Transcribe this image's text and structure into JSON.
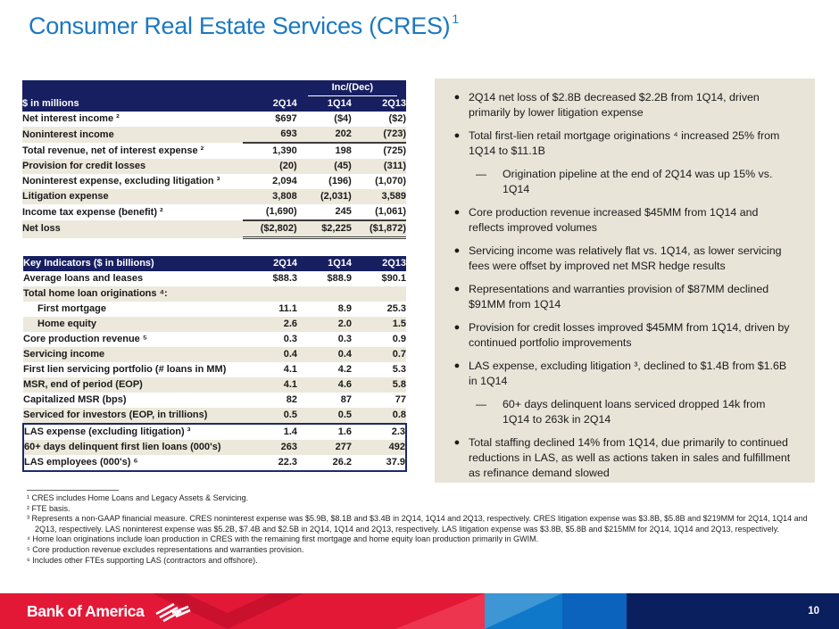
{
  "slide": {
    "title": "Consumer Real Estate Services (CRES)",
    "title_sup": "1",
    "page_number": "10",
    "brand": "Bank of America"
  },
  "colors": {
    "title_blue": "#1b78c2",
    "header_navy": "#171f60",
    "row_beige": "#ece8db",
    "panel_beige": "#e8e4d8",
    "footer_red": "#e31837",
    "footer_blue": "#0f78c8",
    "footer_navy": "#0a1f5e"
  },
  "income_table": {
    "inc_dec_label": "Inc/(Dec)",
    "col_header_label": "$ in millions",
    "columns": [
      "2Q14",
      "1Q14",
      "2Q13"
    ],
    "rows": [
      {
        "label": "Net interest income ²",
        "values": [
          "$697",
          "($4)",
          "($2)"
        ]
      },
      {
        "label": "Noninterest income",
        "values": [
          "693",
          "202",
          "(723)"
        ],
        "underline": true
      },
      {
        "label": "Total revenue, net of interest expense ²",
        "values": [
          "1,390",
          "198",
          "(725)"
        ]
      },
      {
        "label": "Provision for credit losses",
        "values": [
          "(20)",
          "(45)",
          "(311)"
        ]
      },
      {
        "label": "Noninterest expense, excluding litigation ³",
        "values": [
          "2,094",
          "(196)",
          "(1,070)"
        ]
      },
      {
        "label": "Litigation expense",
        "values": [
          "3,808",
          "(2,031)",
          "3,589"
        ]
      },
      {
        "label": "Income tax expense (benefit) ²",
        "values": [
          "(1,690)",
          "245",
          "(1,061)"
        ],
        "underline": true
      },
      {
        "label": "Net loss",
        "values": [
          "($2,802)",
          "$2,225",
          "($1,872)"
        ],
        "double_underline": true
      }
    ]
  },
  "key_indicators_table": {
    "header_label": "Key Indicators ($ in billions)",
    "columns": [
      "2Q14",
      "1Q14",
      "2Q13"
    ],
    "rows": [
      {
        "label": "Average loans and leases",
        "values": [
          "$88.3",
          "$88.9",
          "$90.1"
        ]
      },
      {
        "label": "Total home loan originations ⁴:",
        "values": [
          "",
          "",
          ""
        ]
      },
      {
        "label": "First mortgage",
        "values": [
          "11.1",
          "8.9",
          "25.3"
        ],
        "indent": true
      },
      {
        "label": "Home equity",
        "values": [
          "2.6",
          "2.0",
          "1.5"
        ],
        "indent": true
      },
      {
        "label": "Core production revenue ⁵",
        "values": [
          "0.3",
          "0.3",
          "0.9"
        ]
      },
      {
        "label": "Servicing income",
        "values": [
          "0.4",
          "0.4",
          "0.7"
        ]
      },
      {
        "label": "First lien servicing portfolio (# loans in MM)",
        "values": [
          "4.1",
          "4.2",
          "5.3"
        ]
      },
      {
        "label": "MSR, end of period (EOP)",
        "values": [
          "4.1",
          "4.6",
          "5.8"
        ]
      },
      {
        "label": "Capitalized MSR (bps)",
        "values": [
          "82",
          "87",
          "77"
        ]
      },
      {
        "label": "Serviced for investors (EOP, in trillions)",
        "values": [
          "0.5",
          "0.5",
          "0.8"
        ]
      },
      {
        "label": "LAS expense (excluding litigation) ³",
        "values": [
          "1.4",
          "1.6",
          "2.3"
        ],
        "boxed": true
      },
      {
        "label": "60+ days delinquent first lien loans (000's)",
        "values": [
          "263",
          "277",
          "492"
        ],
        "boxed": true
      },
      {
        "label": "LAS employees (000's) ⁶",
        "values": [
          "22.3",
          "26.2",
          "37.9"
        ],
        "boxed": true
      }
    ]
  },
  "highlights": {
    "bullet_char": "●",
    "sub_bullet_char": "—",
    "bullets": [
      {
        "text": "2Q14 net loss of $2.8B decreased $2.2B from 1Q14, driven primarily by lower litigation expense"
      },
      {
        "text": "Total first-lien retail mortgage originations ⁴ increased 25% from 1Q14 to $11.1B",
        "sub": [
          "Origination pipeline at the end of 2Q14 was up 15% vs. 1Q14"
        ]
      },
      {
        "text": "Core production revenue increased $45MM from 1Q14 and reflects improved volumes"
      },
      {
        "text": "Servicing income was relatively flat vs. 1Q14, as lower servicing fees were offset by improved net MSR hedge results"
      },
      {
        "text": "Representations and warranties provision of $87MM declined $91MM from 1Q14"
      },
      {
        "text": "Provision for credit losses improved $45MM from 1Q14, driven by continued portfolio improvements"
      },
      {
        "text": "LAS expense, excluding litigation ³, declined to $1.4B from $1.6B in 1Q14",
        "sub": [
          "60+ days delinquent loans serviced dropped 14k from 1Q14 to 263k in 2Q14"
        ]
      },
      {
        "text": "Total staffing declined 14% from 1Q14, due primarily to continued reductions in LAS, as well as actions taken in sales and fulfillment as refinance demand slowed"
      }
    ]
  },
  "footnotes": [
    "¹ CRES includes Home Loans and Legacy Assets & Servicing.",
    "² FTE basis.",
    "³ Represents a non-GAAP financial measure. CRES noninterest expense was $5.9B, $8.1B and $3.4B in 2Q14, 1Q14 and 2Q13, respectively. CRES litigation expense was $3.8B, $5.8B and $219MM for 2Q14, 1Q14 and 2Q13, respectively. LAS noninterest expense was $5.2B, $7.4B and $2.5B in 2Q14, 1Q14 and 2Q13, respectively. LAS litigation expense was $3.8B, $5.8B and $215MM for 2Q14, 1Q14 and 2Q13, respectively.",
    "⁴ Home loan originations include loan production in CRES with the remaining first mortgage and home equity loan production primarily in GWIM.",
    "⁵ Core production revenue excludes representations and warranties provision.",
    "⁶ Includes other FTEs supporting LAS (contractors and offshore)."
  ]
}
